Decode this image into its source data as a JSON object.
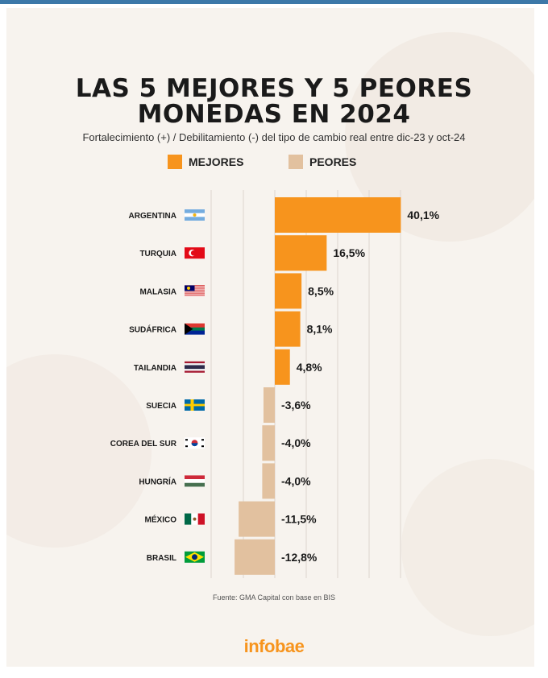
{
  "title_line1": "LAS 5 MEJORES Y 5 PEORES",
  "title_line2": "MONEDAS EN 2024",
  "subtitle": "Fortalecimiento (+) / Debilitamiento (-) del tipo de cambio real entre dic-23 y oct-24",
  "legend": {
    "best": "MEJORES",
    "worst": "PEORES"
  },
  "colors": {
    "best": "#f7941d",
    "worst": "#e2c19f",
    "text": "#1a1a1a"
  },
  "source": "Fuente: GMA Capital con base en BIS",
  "brand": "infobae",
  "chart_data": {
    "type": "bar",
    "orientation": "horizontal",
    "categories": [
      "ARGENTINA",
      "TURQUIA",
      "MALASIA",
      "SUDÁFRICA",
      "TAILANDIA",
      "SUECIA",
      "COREA DEL SUR",
      "HUNGRÍA",
      "MÉXICO",
      "BRASIL"
    ],
    "values": [
      40.1,
      16.5,
      8.5,
      8.1,
      4.8,
      -3.6,
      -4.0,
      -4.0,
      -11.5,
      -12.8
    ],
    "labels": [
      "40,1%",
      "16,5%",
      "8,5%",
      "8,1%",
      "4,8%",
      "-3,6%",
      "-4,0%",
      "-4,0%",
      "-11,5%",
      "-12,8%"
    ],
    "groups": [
      "best",
      "best",
      "best",
      "best",
      "best",
      "worst",
      "worst",
      "worst",
      "worst",
      "worst"
    ],
    "flags": [
      "argentina-flag",
      "turkey-flag",
      "malaysia-flag",
      "south-africa-flag",
      "thailand-flag",
      "sweden-flag",
      "south-korea-flag",
      "hungary-flag",
      "mexico-flag",
      "brazil-flag"
    ],
    "grid": true,
    "legend_position": "top"
  }
}
